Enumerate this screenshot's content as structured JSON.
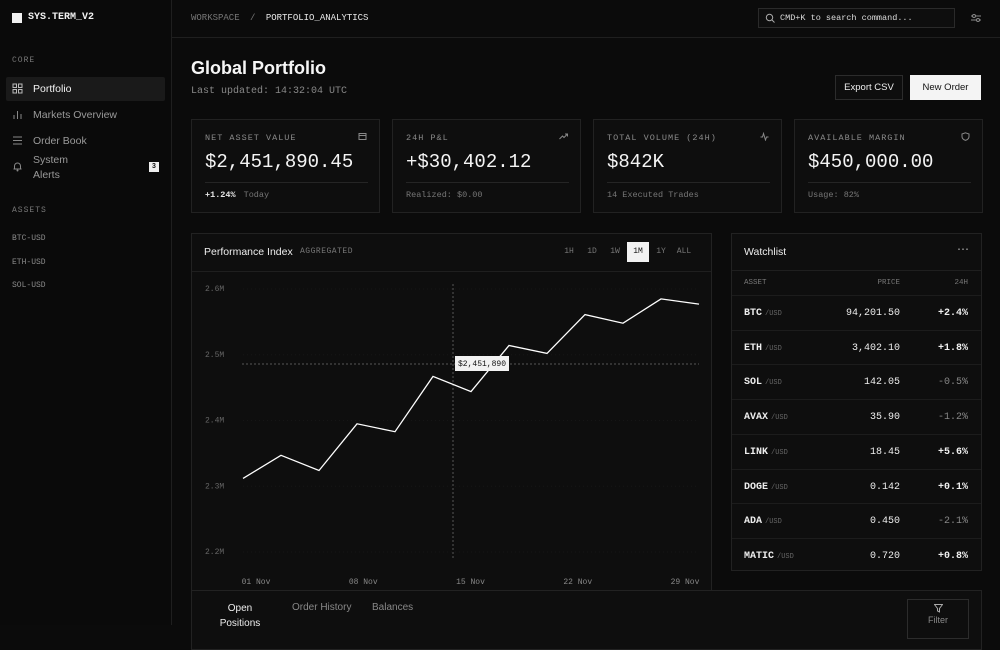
{
  "sidebar": {
    "brand": "SYS.TERM_V2",
    "core_label": "CORE",
    "nav": [
      {
        "label": "Portfolio"
      },
      {
        "label": "Markets Overview"
      },
      {
        "label": "Order Book"
      },
      {
        "label": "System Alerts",
        "badge": 3
      }
    ],
    "active_nav": 0,
    "assets_label": "ASSETS",
    "assets": [
      "BTC-USD",
      "ETH-USD",
      "SOL-USD"
    ]
  },
  "topbar": {
    "breadcrumb": [
      "WORKSPACE",
      "PORTFOLIO_ANALYTICS"
    ],
    "separator": "/",
    "search_placeholder": "CMD+K to search command..."
  },
  "header": {
    "title": "Global Portfolio",
    "updated": "Last updated: 14:32:04 UTC",
    "buttons": [
      "Export CSV",
      "New Order"
    ]
  },
  "stats": [
    {
      "label": "NET ASSET VALUE",
      "value": "$2,451,890.45",
      "change": "+1.24%",
      "note": "Today"
    },
    {
      "label": "24H P&L",
      "value": "+$30,402.12",
      "note": "Realized: $0.00"
    },
    {
      "label": "TOTAL VOLUME (24H)",
      "value": "$842K",
      "note": "14 Executed Trades"
    },
    {
      "label": "AVAILABLE MARGIN",
      "value": "$450,000.00",
      "note": "Usage: 82%"
    }
  ],
  "chart_data": {
    "type": "line",
    "title": "Performance Index",
    "subtitle": "AGGREGATED",
    "ranges": [
      "1H",
      "1D",
      "1W",
      "1M",
      "1Y",
      "ALL"
    ],
    "active_range": 3,
    "x_labels": [
      "01 Nov",
      "08 Nov",
      "15 Nov",
      "22 Nov",
      "29 Nov"
    ],
    "values": [
      2312000,
      2347000,
      2324000,
      2395000,
      2383000,
      2467000,
      2444000,
      2514000,
      2502000,
      2561000,
      2548000,
      2585000,
      2577000
    ],
    "color": "#ffffff",
    "ylim": [
      2200000,
      2600000
    ],
    "yticks": [
      {
        "value": 2200000,
        "label": "2.2M"
      },
      {
        "value": 2300000,
        "label": "2.3M"
      },
      {
        "value": 2400000,
        "label": "2.4M"
      },
      {
        "value": 2500000,
        "label": "2.5M"
      },
      {
        "value": 2600000,
        "label": "2.6M"
      }
    ],
    "grid": true,
    "annotation": "$2,451,890"
  },
  "watchlist": {
    "title": "Watchlist",
    "columns": [
      "ASSET",
      "PRICE",
      "24H"
    ],
    "quote": "/USD",
    "rows": [
      [
        "BTC",
        "94,201.50",
        "+2.4%"
      ],
      [
        "ETH",
        "3,402.10",
        "+1.8%"
      ],
      [
        "SOL",
        "142.05",
        "-0.5%"
      ],
      [
        "AVAX",
        "35.90",
        "-1.2%"
      ],
      [
        "LINK",
        "18.45",
        "+5.6%"
      ],
      [
        "DOGE",
        "0.142",
        "+0.1%"
      ],
      [
        "ADA",
        "0.450",
        "-2.1%"
      ],
      [
        "MATIC",
        "0.720",
        "+0.8%"
      ]
    ]
  },
  "positions": {
    "tabs": [
      "Open Positions",
      "Order History",
      "Balances"
    ],
    "filter": "Filter"
  }
}
